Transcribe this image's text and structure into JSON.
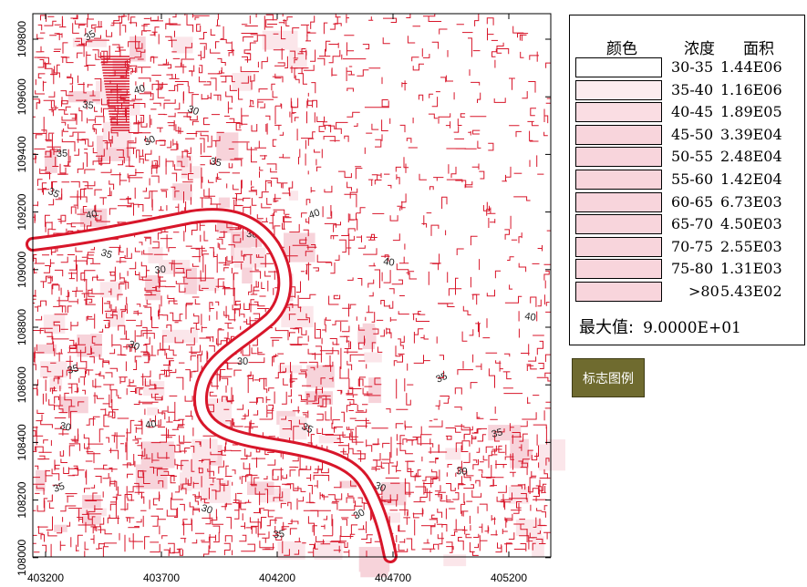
{
  "map": {
    "x_ticks": [
      "403200",
      "403700",
      "404200",
      "404700",
      "405200"
    ],
    "y_ticks": [
      "109800",
      "109600",
      "109400",
      "109200",
      "109000",
      "108800",
      "108600",
      "108400",
      "108200",
      "108000"
    ],
    "contour_labels": [
      "35",
      "35",
      "40",
      "30",
      "35",
      "30",
      "35",
      "40",
      "35",
      "30",
      "40",
      "35",
      "30",
      "35",
      "40",
      "35",
      "30",
      "30",
      "35",
      "30",
      "40",
      "35",
      "30",
      "35",
      "30",
      "35",
      "30",
      "40",
      "35",
      "30"
    ],
    "colors": {
      "contour": "#d8162a",
      "river": "#ffffff",
      "fill_light": "#fbe6ea",
      "fill_mid": "#f7d3da"
    }
  },
  "legend": {
    "header_color": "颜色",
    "header_conc": "浓度",
    "header_area": "面积",
    "rows": [
      {
        "range": "30-35",
        "area": "1.44E06",
        "color": "#ffffff"
      },
      {
        "range": "35-40",
        "area": "1.16E06",
        "color": "#fcecef"
      },
      {
        "range": "40-45",
        "area": "1.89E05",
        "color": "#fadde3"
      },
      {
        "range": "45-50",
        "area": "3.39E04",
        "color": "#f8d5dc"
      },
      {
        "range": "50-55",
        "area": "2.48E04",
        "color": "#f8d5dc"
      },
      {
        "range": "55-60",
        "area": "1.42E04",
        "color": "#f8d5dc"
      },
      {
        "range": "60-65",
        "area": "6.73E03",
        "color": "#f8d5dc"
      },
      {
        "range": "65-70",
        "area": "4.50E03",
        "color": "#f8d5dc"
      },
      {
        "range": "70-75",
        "area": "2.55E03",
        "color": "#f8d5dc"
      },
      {
        "range": "75-80",
        "area": "1.31E03",
        "color": "#f8d5dc"
      },
      {
        "range": ">80",
        "area": "5.43E02",
        "color": "#f8d5dc"
      }
    ],
    "max_label": "最大值:",
    "max_value": "9.0000E+01"
  },
  "button": {
    "label": "标志图例"
  }
}
